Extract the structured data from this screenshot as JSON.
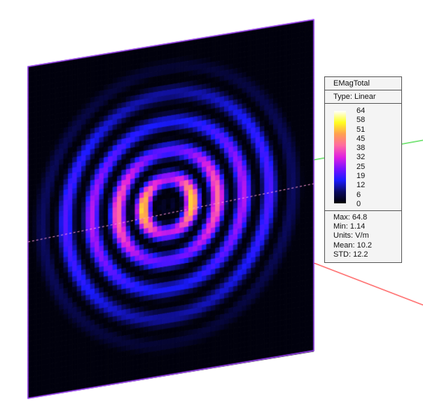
{
  "chart_data": {
    "type": "heatmap",
    "title": "EMagTotal",
    "scale_type": "Type: Linear",
    "colorbar_ticks": [
      "64",
      "58",
      "51",
      "45",
      "38",
      "32",
      "25",
      "19",
      "12",
      "6",
      "0"
    ],
    "colormap": [
      "#000000",
      "#0a0a60",
      "#1a1aff",
      "#7a10ff",
      "#e020e0",
      "#ff6aa0",
      "#ffa050",
      "#ffff20",
      "#ffffff"
    ],
    "stats": {
      "max": "Max: 64.8",
      "min": "Min: 1.14",
      "units": "Units: V/m",
      "mean": "Mean: 10.2",
      "std": "STD: 12.2"
    },
    "range": [
      0,
      64.8
    ],
    "pattern": "concentric rings"
  },
  "axes_colors": {
    "x": "#ff0000",
    "y": "#00cc00",
    "plane_edge": "#a040ff"
  }
}
